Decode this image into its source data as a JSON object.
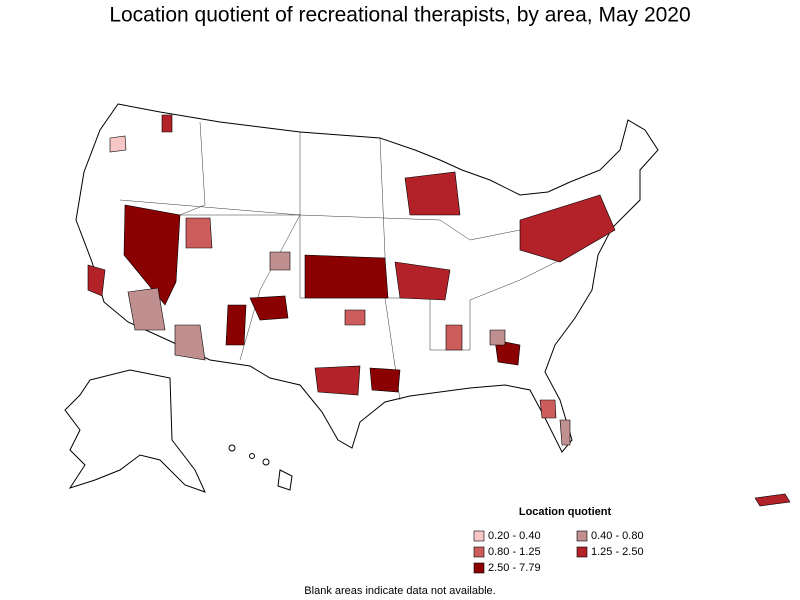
{
  "title": "Location quotient of recreational therapists, by area, May 2020",
  "legend": {
    "title": "Location quotient",
    "items": [
      {
        "label": "0.20 - 0.40",
        "color": "#f7c6c6"
      },
      {
        "label": "0.40 - 0.80",
        "color": "#c09090"
      },
      {
        "label": "0.80 - 1.25",
        "color": "#cd5c5c"
      },
      {
        "label": "1.25 - 2.50",
        "color": "#b22228"
      },
      {
        "label": "2.50 - 7.79",
        "color": "#8b0000"
      }
    ]
  },
  "note": "Blank areas indicate data not available."
}
